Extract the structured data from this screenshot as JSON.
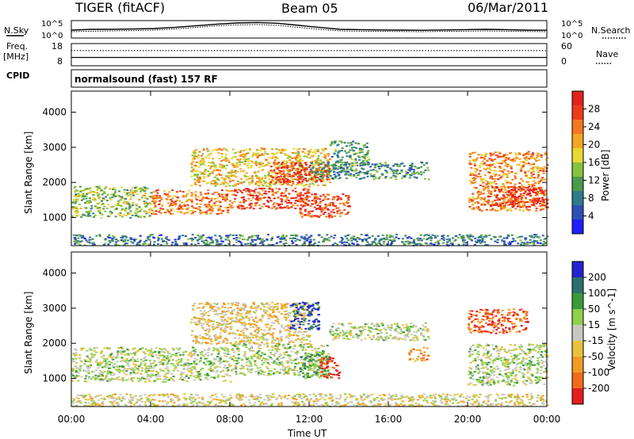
{
  "header": {
    "radar": "TIGER (fitACF)",
    "beam": "Beam 05",
    "date": "06/Mar/2011"
  },
  "colors": {
    "power_scale": [
      "#1f1fff",
      "#2d4fb5",
      "#2f7a8d",
      "#4c9a4c",
      "#86c23a",
      "#e7d832",
      "#f3a523",
      "#f57621",
      "#ee3a1c",
      "#e2221c"
    ],
    "velocity_scale": [
      "#2323d0",
      "#2c6f6f",
      "#3a9a3a",
      "#8ed04a",
      "#c8c8c0",
      "#e8c23c",
      "#f29a24",
      "#f26a1c",
      "#e51e1e"
    ]
  },
  "chart_data": [
    {
      "type": "line",
      "panel": "noise",
      "left_label": "N.Sky",
      "left_ticks": [
        "10^5",
        "10^0"
      ],
      "right_label": "N.Search",
      "right_ticks": [
        "10^5",
        "10^0"
      ],
      "series": [
        {
          "values": [
            0.45,
            0.5,
            0.5,
            0.52,
            0.55,
            0.62,
            0.72,
            0.82,
            0.9,
            0.93,
            0.88,
            0.75,
            0.62,
            0.5,
            0.48,
            0.46,
            0.45,
            0.44,
            0.46,
            0.48,
            0.5,
            0.48,
            0.45,
            0.44
          ]
        },
        {
          "values": [
            0.35,
            0.38,
            0.4,
            0.42,
            0.45,
            0.52,
            0.62,
            0.72,
            0.78,
            0.8,
            0.75,
            0.62,
            0.5,
            0.4,
            0.38,
            0.37,
            0.36,
            0.35,
            0.37,
            0.38,
            0.4,
            0.38,
            0.36,
            0.35
          ]
        }
      ]
    },
    {
      "type": "line",
      "panel": "frequency",
      "left_label": "Freq.",
      "left_unit": "[MHz]",
      "left_ticks": [
        "18",
        "8"
      ],
      "right_label": "Nave",
      "right_ticks": [
        "60",
        "0"
      ],
      "series": [
        {
          "name": "Freq",
          "values": [
            15,
            15,
            15,
            15,
            15,
            15,
            15,
            15,
            15,
            15,
            15,
            15,
            15,
            15,
            15,
            15,
            15,
            15,
            15,
            15,
            15,
            15,
            15,
            15
          ]
        },
        {
          "name": "Nave",
          "values": [
            22,
            22,
            22,
            22,
            22,
            22,
            22,
            22,
            22,
            22,
            22,
            22,
            22,
            22,
            22,
            22,
            22,
            22,
            22,
            22,
            22,
            22,
            22,
            22
          ]
        }
      ]
    },
    {
      "type": "table",
      "panel": "cpid",
      "label": "CPID",
      "text": "normalsound (fast) 157 RF"
    },
    {
      "type": "heatmap",
      "panel": "power",
      "ylabel": "Slant Range [km]",
      "ylim": [
        200,
        4600
      ],
      "yticks": [
        1000,
        2000,
        3000,
        4000
      ],
      "xlim": [
        0,
        24
      ],
      "colorbar_label": "Power [dB]",
      "colorbar_ticks": [
        "4",
        "8",
        "12",
        "16",
        "20",
        "24",
        "28"
      ],
      "bands": [
        {
          "x0": 0,
          "x1": 24,
          "y0": 200,
          "y1": 520,
          "level": 0.25
        },
        {
          "x0": 0,
          "x1": 4,
          "y0": 1000,
          "y1": 1900,
          "level": 0.45
        },
        {
          "x0": 4,
          "x1": 8,
          "y0": 1100,
          "y1": 1800,
          "level": 0.75
        },
        {
          "x0": 8,
          "x1": 12,
          "y0": 1250,
          "y1": 1850,
          "level": 0.85
        },
        {
          "x0": 6,
          "x1": 13,
          "y0": 1900,
          "y1": 3000,
          "level": 0.6
        },
        {
          "x0": 10,
          "x1": 13,
          "y0": 2000,
          "y1": 2600,
          "level": 0.9
        },
        {
          "x0": 11.5,
          "x1": 14,
          "y0": 1000,
          "y1": 1700,
          "level": 0.85
        },
        {
          "x0": 12,
          "x1": 18,
          "y0": 2100,
          "y1": 2600,
          "level": 0.3
        },
        {
          "x0": 13,
          "x1": 15,
          "y0": 2500,
          "y1": 3200,
          "level": 0.35
        },
        {
          "x0": 20,
          "x1": 24,
          "y0": 1200,
          "y1": 2900,
          "level": 0.7
        },
        {
          "x0": 21,
          "x1": 24,
          "y0": 1300,
          "y1": 1900,
          "level": 0.95
        }
      ]
    },
    {
      "type": "heatmap",
      "panel": "velocity",
      "ylabel": "Slant Range [km]",
      "ylim": [
        200,
        4600
      ],
      "yticks": [
        1000,
        2000,
        3000,
        4000
      ],
      "xlim": [
        0,
        24
      ],
      "xticks": [
        "00:00",
        "04:00",
        "08:00",
        "12:00",
        "16:00",
        "20:00",
        "00:00"
      ],
      "xlabel": "Time UT",
      "colorbar_label": "Velocity [m s^-1]",
      "colorbar_ticks": [
        "200",
        "100",
        "50",
        "15",
        "-15",
        "-50",
        "-100",
        "-200"
      ],
      "bands": [
        {
          "x0": 0,
          "x1": 24,
          "y0": 200,
          "y1": 560,
          "level": 0.55
        },
        {
          "x0": 0,
          "x1": 8,
          "y0": 900,
          "y1": 1900,
          "level": 0.45
        },
        {
          "x0": 8,
          "x1": 13,
          "y0": 1100,
          "y1": 2000,
          "level": 0.45
        },
        {
          "x0": 6,
          "x1": 12,
          "y0": 2000,
          "y1": 3200,
          "level": 0.6
        },
        {
          "x0": 11,
          "x1": 12.5,
          "y0": 2400,
          "y1": 3200,
          "level": 0.1
        },
        {
          "x0": 11.5,
          "x1": 13,
          "y0": 1000,
          "y1": 1700,
          "level": 0.3
        },
        {
          "x0": 12.5,
          "x1": 13.5,
          "y0": 1000,
          "y1": 1600,
          "level": 0.95
        },
        {
          "x0": 13,
          "x1": 18,
          "y0": 2100,
          "y1": 2600,
          "level": 0.45
        },
        {
          "x0": 17,
          "x1": 18,
          "y0": 1500,
          "y1": 1900,
          "level": 0.75
        },
        {
          "x0": 20,
          "x1": 24,
          "y0": 800,
          "y1": 2000,
          "level": 0.45
        },
        {
          "x0": 20,
          "x1": 23,
          "y0": 2300,
          "y1": 3000,
          "level": 0.85
        }
      ]
    }
  ]
}
